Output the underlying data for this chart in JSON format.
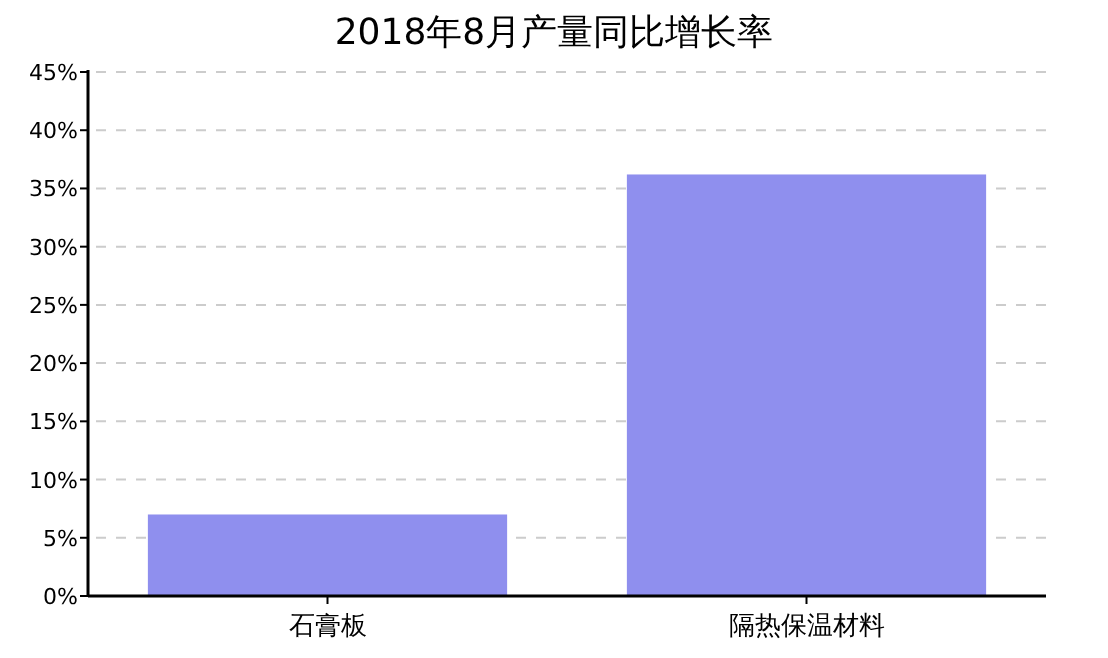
{
  "chart_data": {
    "type": "bar",
    "title": "2018年8月产量同比增长率",
    "categories": [
      "石膏板",
      "隔热保温材料"
    ],
    "values": [
      7.0,
      36.2
    ],
    "color": "#8f8fee",
    "ylim": [
      0,
      45
    ],
    "yticks": [
      {
        "value": 0,
        "label": "0%"
      },
      {
        "value": 5,
        "label": "5%"
      },
      {
        "value": 10,
        "label": "10%"
      },
      {
        "value": 15,
        "label": "15%"
      },
      {
        "value": 20,
        "label": "20%"
      },
      {
        "value": 25,
        "label": "25%"
      },
      {
        "value": 30,
        "label": "30%"
      },
      {
        "value": 35,
        "label": "35%"
      },
      {
        "value": 40,
        "label": "40%"
      },
      {
        "value": 45,
        "label": "45%"
      }
    ],
    "grid": "y"
  }
}
